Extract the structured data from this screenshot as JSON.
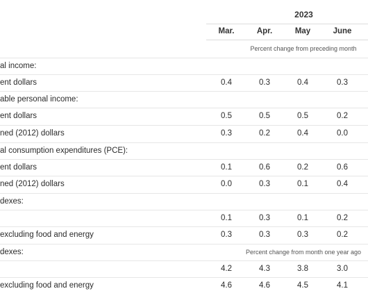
{
  "table": {
    "year": "2023",
    "months": [
      "Mar.",
      "Apr.",
      "May",
      "June"
    ],
    "note_monthly": "Percent change from preceding month",
    "note_yearly": "Percent change from month one year ago",
    "rows": [
      {
        "label": "al income:",
        "values": []
      },
      {
        "label": "ent dollars",
        "values": [
          "0.4",
          "0.3",
          "0.4",
          "0.3"
        ]
      },
      {
        "label": "able personal income:",
        "values": []
      },
      {
        "label": "ent dollars",
        "values": [
          "0.5",
          "0.5",
          "0.5",
          "0.2"
        ]
      },
      {
        "label": "ned (2012) dollars",
        "values": [
          "0.3",
          "0.2",
          "0.4",
          "0.0"
        ]
      },
      {
        "label": "al consumption expenditures (PCE):",
        "values": []
      },
      {
        "label": "ent dollars",
        "values": [
          "0.1",
          "0.6",
          "0.2",
          "0.6"
        ]
      },
      {
        "label": "ned (2012) dollars",
        "values": [
          "0.0",
          "0.3",
          "0.1",
          "0.4"
        ]
      },
      {
        "label": "dexes:",
        "values": []
      },
      {
        "label": "",
        "values": [
          "0.1",
          "0.3",
          "0.1",
          "0.2"
        ]
      },
      {
        "label": "excluding food and energy",
        "values": [
          "0.3",
          "0.3",
          "0.3",
          "0.2"
        ]
      },
      {
        "label": "dexes:",
        "values": []
      },
      {
        "label": "",
        "values": [
          "4.2",
          "4.3",
          "3.8",
          "3.0"
        ]
      },
      {
        "label": "excluding food and energy",
        "values": [
          "4.6",
          "4.6",
          "4.5",
          "4.1"
        ]
      }
    ]
  }
}
